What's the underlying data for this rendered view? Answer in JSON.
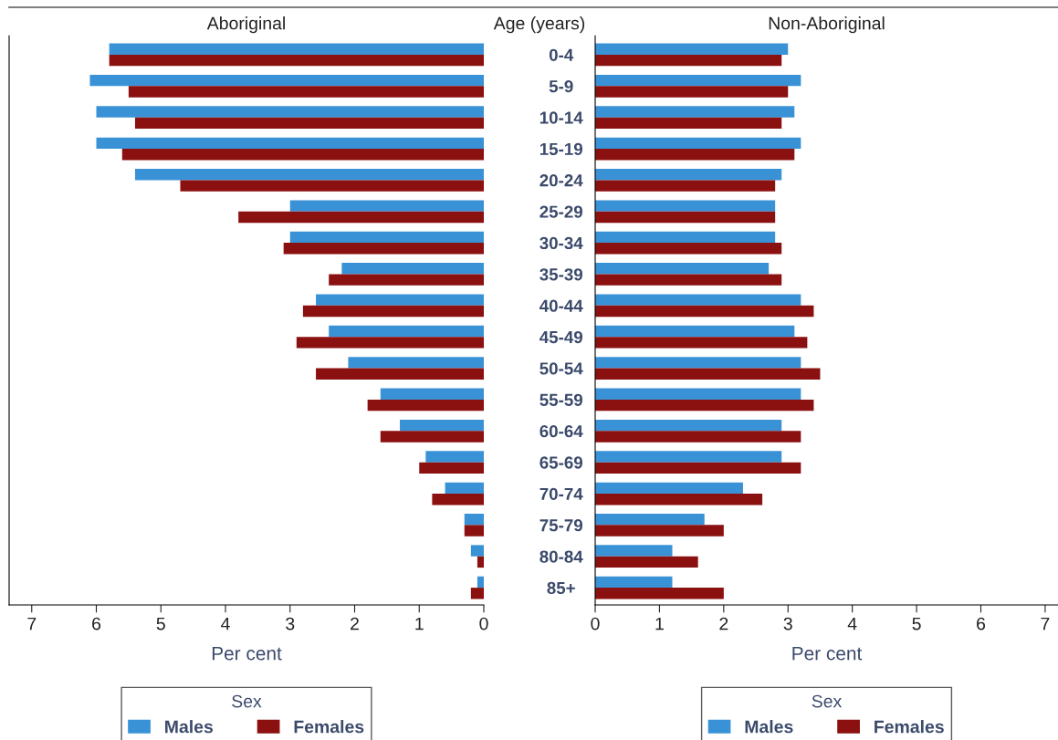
{
  "chart_data": [
    {
      "type": "bar",
      "orientation": "horizontal",
      "title": "Aboriginal",
      "ylabel": "Age (years)",
      "xlabel": "Per cent",
      "legend_title": "Sex",
      "legend": "bottom",
      "categories": [
        "0-4",
        "5-9",
        "10-14",
        "15-19",
        "20-24",
        "25-29",
        "30-34",
        "35-39",
        "40-44",
        "45-49",
        "50-54",
        "55-59",
        "60-64",
        "65-69",
        "70-74",
        "75-79",
        "80-84",
        "85+"
      ],
      "xlim": [
        7.35,
        0
      ],
      "xticks": [
        0,
        1,
        2,
        3,
        4,
        5,
        6,
        7
      ],
      "series": [
        {
          "name": "Males",
          "color": "#3a92d6",
          "values": [
            5.8,
            6.1,
            6.0,
            6.0,
            5.4,
            3.0,
            3.0,
            2.2,
            2.6,
            2.4,
            2.1,
            1.6,
            1.3,
            0.9,
            0.6,
            0.3,
            0.2,
            0.1
          ]
        },
        {
          "name": "Females",
          "color": "#8b1010",
          "values": [
            5.8,
            5.5,
            5.4,
            5.6,
            4.7,
            3.8,
            3.1,
            2.4,
            2.8,
            2.9,
            2.6,
            1.8,
            1.6,
            1.0,
            0.8,
            0.3,
            0.1,
            0.2
          ]
        }
      ]
    },
    {
      "type": "bar",
      "orientation": "horizontal",
      "title": "Non-Aboriginal",
      "xlabel": "Per cent",
      "legend_title": "Sex",
      "legend": "bottom",
      "categories": [
        null,
        null,
        null,
        null,
        null,
        null,
        null,
        null,
        null,
        null,
        null,
        null,
        null,
        null,
        null,
        null,
        null,
        null
      ],
      "xlim": [
        0,
        7.2
      ],
      "xticks": [
        0,
        1,
        2,
        3,
        4,
        5,
        6,
        7
      ],
      "series": [
        {
          "name": "Males",
          "color": "#3a92d6",
          "values": [
            3.0,
            3.2,
            3.1,
            3.2,
            2.9,
            2.8,
            2.8,
            2.7,
            3.2,
            3.1,
            3.2,
            3.2,
            2.9,
            2.9,
            2.3,
            1.7,
            1.2,
            1.2
          ]
        },
        {
          "name": "Females",
          "color": "#8b1010",
          "values": [
            2.9,
            3.0,
            2.9,
            3.1,
            2.8,
            2.8,
            2.9,
            2.9,
            3.4,
            3.3,
            3.5,
            3.4,
            3.2,
            3.2,
            2.6,
            2.0,
            1.6,
            2.0
          ]
        }
      ]
    }
  ]
}
